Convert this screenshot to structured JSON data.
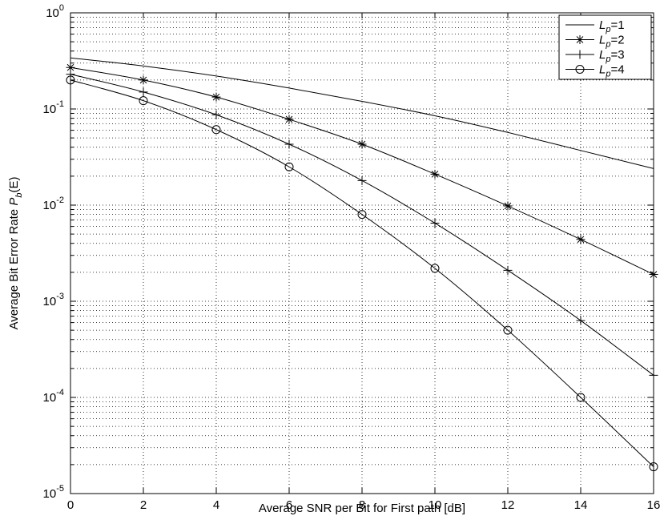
{
  "chart_data": {
    "type": "line",
    "title": "",
    "xlabel": "Average SNR per Bit for First path [dB]",
    "ylabel": {
      "prefix": "Average Bit Error Rate ",
      "symbol": "P",
      "sub": "b",
      "suffix": "(E)"
    },
    "xlim": [
      0,
      16
    ],
    "ylim": [
      1e-05,
      1
    ],
    "yscale": "log",
    "grid": true,
    "legend_position": "top-right",
    "x_ticks": [
      "0",
      "2",
      "4",
      "6",
      "8",
      "10",
      "12",
      "14",
      "16"
    ],
    "y_ticks": [
      {
        "base": "10",
        "exp": "-5"
      },
      {
        "base": "10",
        "exp": "-4"
      },
      {
        "base": "10",
        "exp": "-3"
      },
      {
        "base": "10",
        "exp": "-2"
      },
      {
        "base": "10",
        "exp": "-1"
      },
      {
        "base": "10",
        "exp": "0"
      }
    ],
    "series": [
      {
        "name": {
          "sym": "L",
          "sub": "p",
          "eq": "=1"
        },
        "marker": "none",
        "x": [
          0,
          2,
          4,
          6,
          8,
          10,
          12,
          14,
          16
        ],
        "y": [
          0.34,
          0.28,
          0.22,
          0.165,
          0.12,
          0.085,
          0.057,
          0.037,
          0.024
        ]
      },
      {
        "name": {
          "sym": "L",
          "sub": "p",
          "eq": "=2"
        },
        "marker": "asterisk",
        "x": [
          0,
          2,
          4,
          6,
          8,
          10,
          12,
          14,
          16
        ],
        "y": [
          0.27,
          0.2,
          0.133,
          0.078,
          0.043,
          0.021,
          0.0098,
          0.0044,
          0.0019
        ]
      },
      {
        "name": {
          "sym": "L",
          "sub": "p",
          "eq": "=3"
        },
        "marker": "plus",
        "x": [
          0,
          2,
          4,
          6,
          8,
          10,
          12,
          14,
          16
        ],
        "y": [
          0.23,
          0.15,
          0.087,
          0.043,
          0.018,
          0.0065,
          0.0021,
          0.00063,
          0.00017
        ]
      },
      {
        "name": {
          "sym": "L",
          "sub": "p",
          "eq": "=4"
        },
        "marker": "circle",
        "x": [
          0,
          2,
          4,
          6,
          8,
          10,
          12,
          14,
          16
        ],
        "y": [
          0.2,
          0.122,
          0.061,
          0.025,
          0.008,
          0.0022,
          0.0005,
          0.0001,
          1.9e-05
        ]
      }
    ]
  }
}
